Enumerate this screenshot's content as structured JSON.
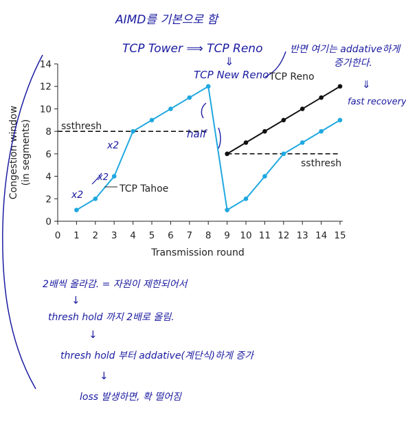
{
  "chart_data": {
    "type": "line",
    "xlabel": "Transmission round",
    "ylabel_line1": "Congestion window",
    "ylabel_line2": "(in segments)",
    "xlim": [
      0,
      15
    ],
    "ylim": [
      0,
      14
    ],
    "x_ticks": [
      0,
      1,
      2,
      3,
      4,
      5,
      6,
      7,
      8,
      9,
      10,
      11,
      12,
      13,
      14,
      15
    ],
    "y_ticks": [
      0,
      2,
      4,
      6,
      8,
      10,
      12,
      14
    ],
    "series": [
      {
        "name": "TCP Tahoe",
        "color": "#1fa8e0",
        "x": [
          1,
          2,
          3,
          4,
          5,
          6,
          7,
          8,
          9,
          10,
          11,
          12,
          13,
          14,
          15
        ],
        "y": [
          1,
          2,
          4,
          8,
          9,
          10,
          11,
          12,
          1,
          2,
          4,
          6,
          7,
          8,
          9
        ]
      },
      {
        "name": "TCP Reno",
        "color": "#111111",
        "x": [
          9,
          10,
          11,
          12,
          13,
          14,
          15
        ],
        "y": [
          6,
          7,
          8,
          9,
          10,
          11,
          12
        ]
      }
    ],
    "thresholds": [
      {
        "label": "ssthresh",
        "y": 8,
        "x_from": 0,
        "x_to": 8
      },
      {
        "label": "ssthresh",
        "y": 6,
        "x_from": 9,
        "x_to": 15
      }
    ]
  },
  "annotations": {
    "top_line1": "AIMD를 기본으로 함",
    "top_line2": "TCP Tower ⟹ TCP Reno",
    "reno_arrow": "⇓",
    "tcp_new_reno": "TCP New Reno",
    "right_note_line1": "반면 여기는 addative하게",
    "right_note_line2": "증가한다.",
    "right_note_arrow": "⇓",
    "fast_recovery": "fast recovery",
    "x2_a": "x2",
    "x2_b": "x2",
    "x2_c": "x2",
    "half": "half",
    "bottom_line1": "2배씩 올라감. = 자원이 제한되어서",
    "bottom_arrow1": "↓",
    "bottom_line2": "thresh hold 까지 2배로 올림.",
    "bottom_arrow2": "↓",
    "bottom_line3": "thresh hold 부터 addative(계단식)하게 증가",
    "bottom_arrow3": "↓",
    "bottom_line4": "loss 발생하면, 확 떨어짐",
    "hand_color": "#1a1aa0"
  }
}
